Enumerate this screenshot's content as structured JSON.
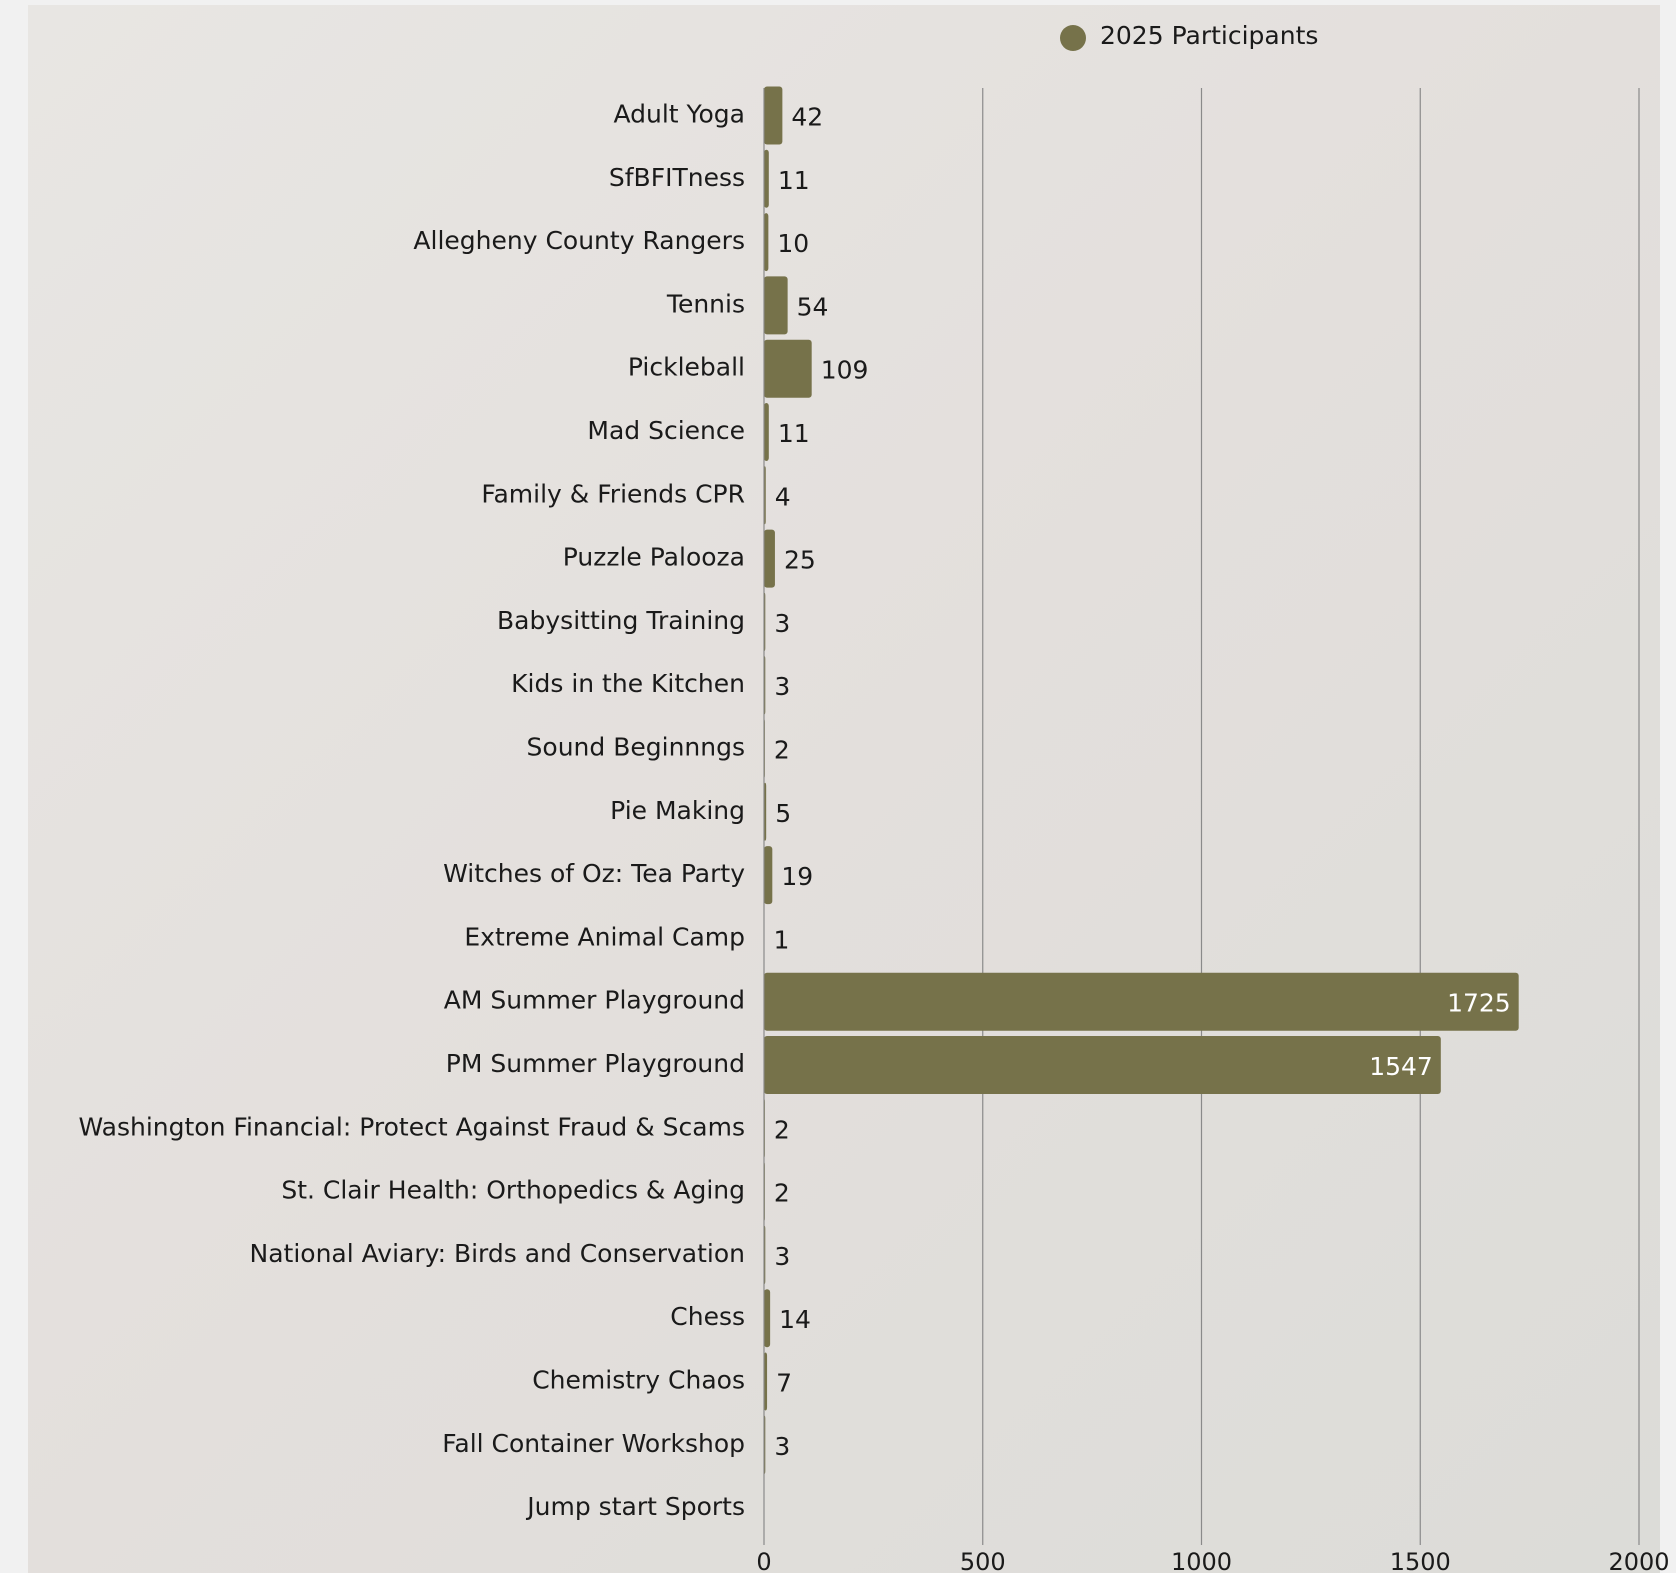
{
  "chart_data": {
    "type": "bar",
    "orientation": "horizontal",
    "categories": [
      "Adult Yoga",
      "SfBFITness",
      "Allegheny County Rangers",
      "Tennis",
      "Pickleball",
      "Mad Science",
      "Family & Friends CPR",
      "Puzzle Palooza",
      "Babysitting Training",
      "Kids in the Kitchen",
      "Sound Beginnngs",
      "Pie Making",
      "Witches of Oz: Tea Party",
      "Extreme Animal Camp",
      "AM Summer Playground",
      "PM Summer Playground",
      "Washington Financial: Protect Against Fraud & Scams",
      "St. Clair Health: Orthopedics & Aging",
      "National Aviary: Birds and Conservation",
      "Chess",
      "Chemistry Chaos",
      "Fall Container Workshop",
      "Jump start Sports"
    ],
    "series": [
      {
        "name": "2025 Participants",
        "color": "#76724a",
        "values": [
          42,
          11,
          10,
          54,
          109,
          11,
          4,
          25,
          3,
          3,
          2,
          5,
          19,
          1,
          1725,
          1547,
          2,
          2,
          3,
          14,
          7,
          3,
          null
        ]
      }
    ],
    "xlim": [
      0,
      2000
    ],
    "xticks": [
      0,
      500,
      1000,
      1500,
      2000
    ],
    "grid": true,
    "legend": "top"
  }
}
